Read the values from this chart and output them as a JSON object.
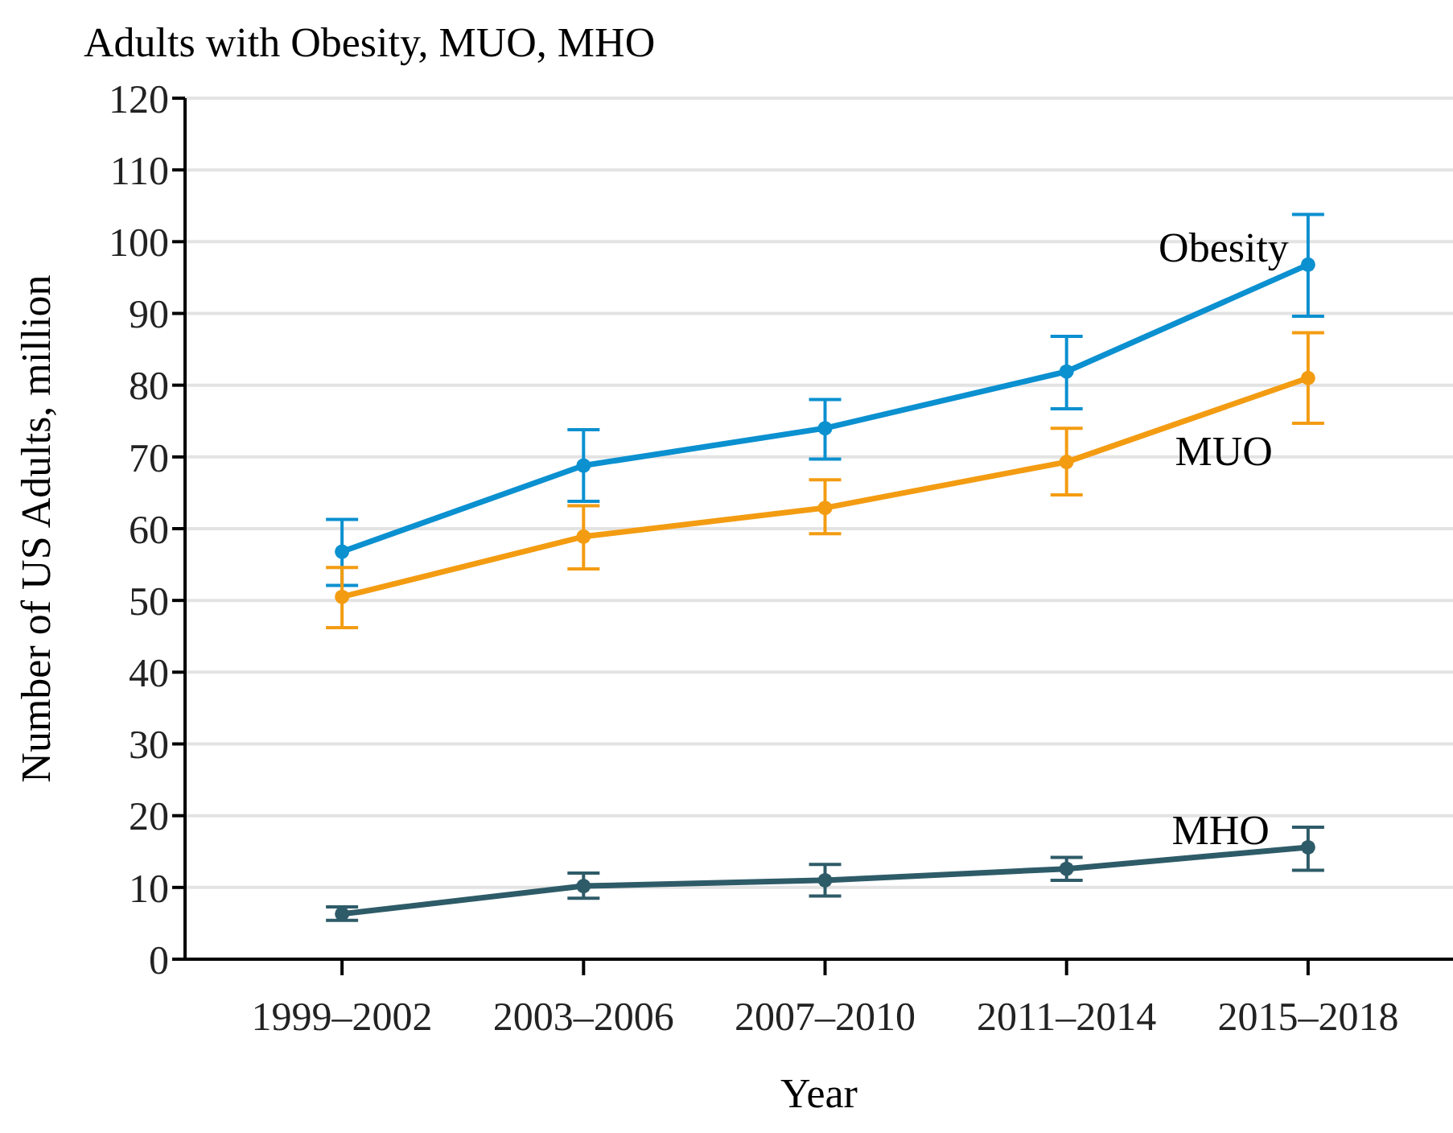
{
  "chart_data": {
    "type": "line",
    "title": "Adults with Obesity, MUO, MHO",
    "xlabel": "Year",
    "ylabel": "Number of US Adults, million",
    "categories": [
      "1999–2002",
      "2003–2006",
      "2007–2010",
      "2011–2014",
      "2015–2018"
    ],
    "series": [
      {
        "name": "Obesity",
        "color": "#0b90d0",
        "values": [
          56.8,
          68.8,
          74.0,
          81.9,
          96.8
        ],
        "errors": [
          [
            52.1,
            61.3
          ],
          [
            63.8,
            73.8
          ],
          [
            69.7,
            78.0
          ],
          [
            76.7,
            86.8
          ],
          [
            89.6,
            103.8
          ]
        ]
      },
      {
        "name": "MUO",
        "color": "#f39c12",
        "values": [
          50.5,
          58.9,
          62.9,
          69.3,
          81.0
        ],
        "errors": [
          [
            46.2,
            54.6
          ],
          [
            54.4,
            63.2
          ],
          [
            59.3,
            66.8
          ],
          [
            64.7,
            74.0
          ],
          [
            74.7,
            87.3
          ]
        ]
      },
      {
        "name": "MHO",
        "color": "#2e5b68",
        "values": [
          6.3,
          10.2,
          11.0,
          12.6,
          15.6
        ],
        "errors": [
          [
            5.4,
            7.3
          ],
          [
            8.5,
            12.0
          ],
          [
            8.8,
            13.2
          ],
          [
            11.0,
            14.2
          ],
          [
            12.4,
            18.4
          ]
        ]
      }
    ],
    "ylim": [
      0,
      120
    ],
    "yticks": [
      0,
      10,
      20,
      30,
      40,
      50,
      60,
      70,
      80,
      90,
      100,
      110,
      120
    ],
    "grid": "y",
    "marker": "circle",
    "line_style": "solid"
  }
}
